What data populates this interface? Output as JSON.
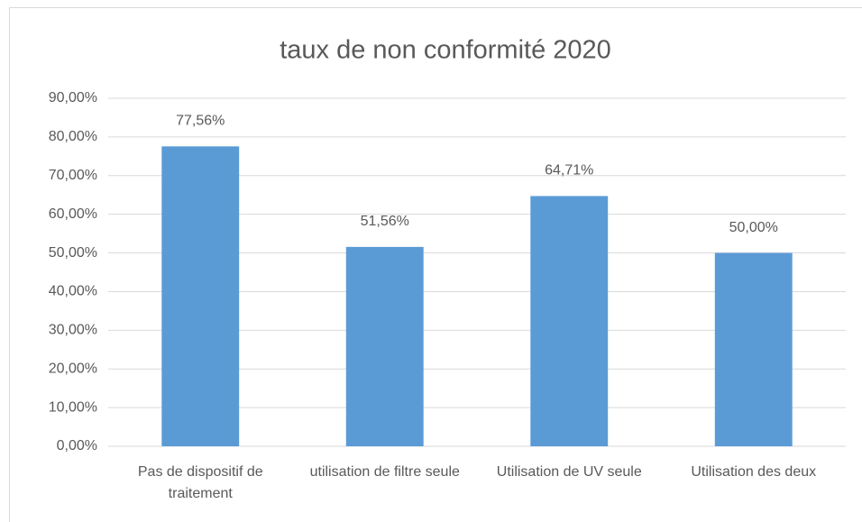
{
  "chart_data": {
    "type": "bar",
    "title": "taux de non conformité 2020",
    "categories": [
      "Pas de dispositif de traitement",
      "utilisation de filtre seule",
      "Utilisation de UV seule",
      "Utilisation des deux"
    ],
    "values": [
      77.56,
      51.56,
      64.71,
      50.0
    ],
    "value_labels": [
      "77,56%",
      "51,56%",
      "64,71%",
      "50,00%"
    ],
    "color": "#5b9bd5",
    "ylim": [
      0,
      90
    ],
    "yticks": [
      {
        "value": 0,
        "label": "0,00%"
      },
      {
        "value": 10,
        "label": "10,00%"
      },
      {
        "value": 20,
        "label": "20,00%"
      },
      {
        "value": 30,
        "label": "30,00%"
      },
      {
        "value": 40,
        "label": "40,00%"
      },
      {
        "value": 50,
        "label": "50,00%"
      },
      {
        "value": 60,
        "label": "60,00%"
      },
      {
        "value": 70,
        "label": "70,00%"
      },
      {
        "value": 80,
        "label": "80,00%"
      },
      {
        "value": 90,
        "label": "90,00%"
      }
    ],
    "grid": true
  }
}
